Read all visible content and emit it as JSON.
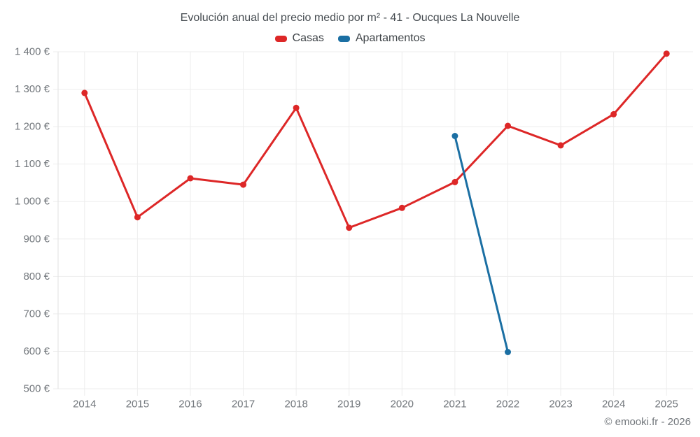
{
  "title": "Evolución anual del precio medio por m² - 41 - Oucques La Nouvelle",
  "footer": "© emooki.fr - 2026",
  "legend": {
    "items": [
      {
        "label": "Casas",
        "color": "#dd2727"
      },
      {
        "label": "Apartamentos",
        "color": "#1b6fa3"
      }
    ]
  },
  "chart_data": {
    "type": "line",
    "title": "Evolución anual del precio medio por m² - 41 - Oucques La Nouvelle",
    "categories": [
      2014,
      2015,
      2016,
      2017,
      2018,
      2019,
      2020,
      2021,
      2022,
      2023,
      2024,
      2025
    ],
    "series": [
      {
        "name": "Casas",
        "color": "#dd2727",
        "values": [
          1290,
          958,
          1062,
          1045,
          1250,
          930,
          983,
          1052,
          1202,
          1150,
          1233,
          1395
        ]
      },
      {
        "name": "Apartamentos",
        "color": "#1b6fa3",
        "values": [
          null,
          null,
          null,
          null,
          null,
          null,
          null,
          1175,
          598,
          null,
          null,
          null
        ]
      }
    ],
    "xlabel": "",
    "ylabel": "",
    "ylim": [
      500,
      1400
    ],
    "ytick_step": 100,
    "ytick_labels": [
      "500 €",
      "600 €",
      "700 €",
      "800 €",
      "900 €",
      "1 000 €",
      "1 100 €",
      "1 200 €",
      "1 300 €",
      "1 400 €"
    ],
    "grid": true,
    "legend_position": "top"
  }
}
